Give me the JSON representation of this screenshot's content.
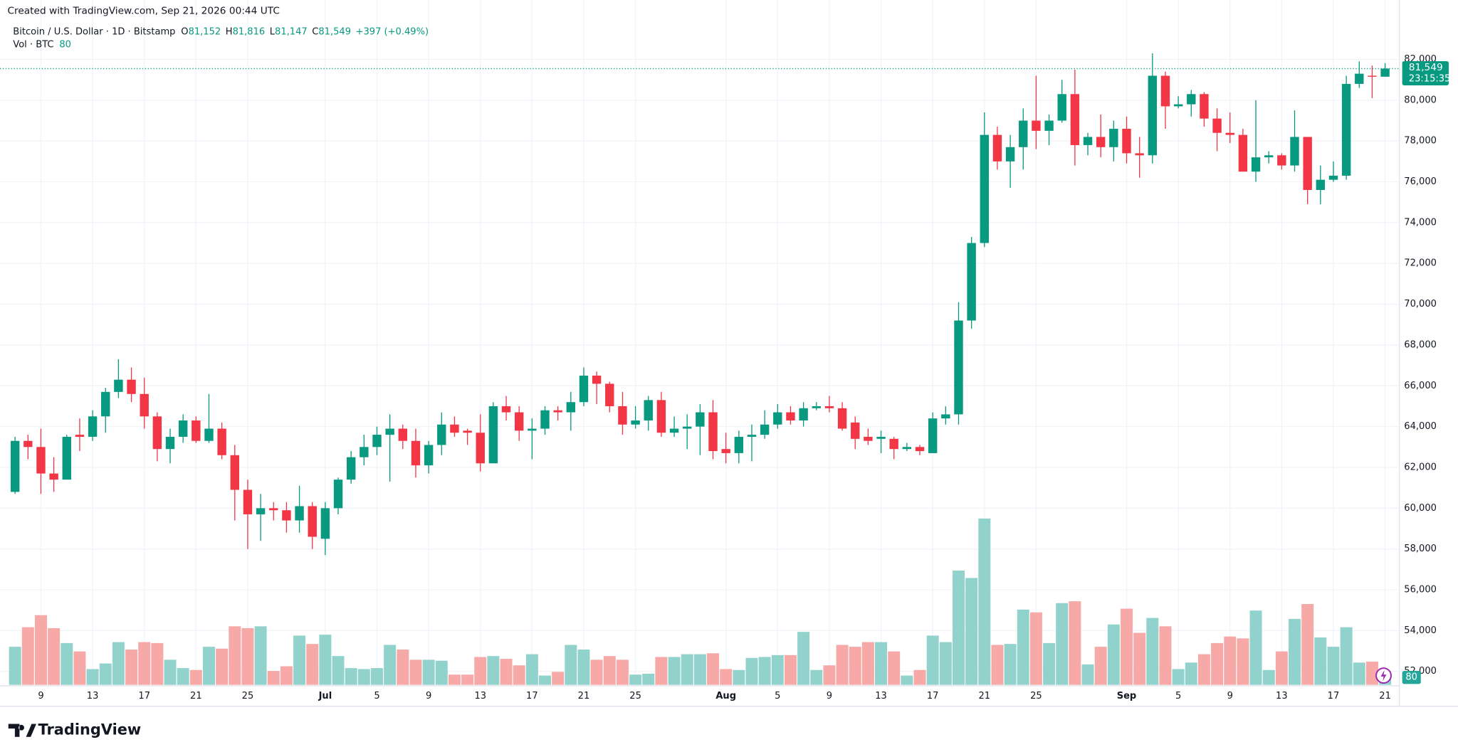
{
  "watermark": "Created with TradingView.com, Sep 21, 2026 00:44 UTC",
  "brand": "TradingView",
  "chart_data": {
    "type": "candlestick",
    "symbol": "Bitcoin / U.S. Dollar · 1D · Bitstamp",
    "ohlc": [
      {
        "label": "O",
        "value": "81,152"
      },
      {
        "label": "H",
        "value": "81,816"
      },
      {
        "label": "L",
        "value": "81,147"
      },
      {
        "label": "C",
        "value": "81,549"
      }
    ],
    "change": "+397 (+0.49%)",
    "volume_label": "Vol · BTC",
    "up_color": "#089981",
    "down_color": "#f23645",
    "volume_up_color": "#92d2cc",
    "volume_down_color": "#f7a9a7",
    "grid": true,
    "x": [
      "2026-06-07",
      "2026-06-08",
      "2026-06-09",
      "2026-06-10",
      "2026-06-11",
      "2026-06-12",
      "2026-06-13",
      "2026-06-14",
      "2026-06-15",
      "2026-06-16",
      "2026-06-17",
      "2026-06-18",
      "2026-06-19",
      "2026-06-20",
      "2026-06-21",
      "2026-06-22",
      "2026-06-23",
      "2026-06-24",
      "2026-06-25",
      "2026-06-26",
      "2026-06-27",
      "2026-06-28",
      "2026-06-29",
      "2026-06-30",
      "2026-07-01",
      "2026-07-02",
      "2026-07-03",
      "2026-07-04",
      "2026-07-05",
      "2026-07-06",
      "2026-07-07",
      "2026-07-08",
      "2026-07-09",
      "2026-07-10",
      "2026-07-11",
      "2026-07-12",
      "2026-07-13",
      "2026-07-14",
      "2026-07-15",
      "2026-07-16",
      "2026-07-17",
      "2026-07-18",
      "2026-07-19",
      "2026-07-20",
      "2026-07-21",
      "2026-07-22",
      "2026-07-23",
      "2026-07-24",
      "2026-07-25",
      "2026-07-26",
      "2026-07-27",
      "2026-07-28",
      "2026-07-29",
      "2026-07-30",
      "2026-07-31",
      "2026-08-01",
      "2026-08-02",
      "2026-08-03",
      "2026-08-04",
      "2026-08-05",
      "2026-08-06",
      "2026-08-07",
      "2026-08-08",
      "2026-08-09",
      "2026-08-10",
      "2026-08-11",
      "2026-08-12",
      "2026-08-13",
      "2026-08-14",
      "2026-08-15",
      "2026-08-16",
      "2026-08-17",
      "2026-08-18",
      "2026-08-19",
      "2026-08-20",
      "2026-08-21",
      "2026-08-22",
      "2026-08-23",
      "2026-08-24",
      "2026-08-25",
      "2026-08-26",
      "2026-08-27",
      "2026-08-28",
      "2026-08-29",
      "2026-08-30",
      "2026-08-31",
      "2026-09-01",
      "2026-09-02",
      "2026-09-03",
      "2026-09-04",
      "2026-09-05",
      "2026-09-06",
      "2026-09-07",
      "2026-09-08",
      "2026-09-09",
      "2026-09-10",
      "2026-09-11",
      "2026-09-12",
      "2026-09-13",
      "2026-09-14",
      "2026-09-15",
      "2026-09-16",
      "2026-09-17",
      "2026-09-18",
      "2026-09-19",
      "2026-09-20",
      "2026-09-21"
    ],
    "open": [
      60800,
      63300,
      63000,
      61700,
      61400,
      63600,
      63500,
      64500,
      65700,
      66300,
      65600,
      64500,
      62900,
      63500,
      64300,
      63300,
      63900,
      62600,
      60900,
      59700,
      60000,
      59900,
      59400,
      60100,
      58500,
      60000,
      61400,
      62500,
      63000,
      63600,
      63900,
      63300,
      62100,
      63100,
      64100,
      63800,
      63700,
      62200,
      65000,
      64700,
      63800,
      63900,
      64800,
      64700,
      65200,
      66500,
      66100,
      65000,
      64100,
      64300,
      65300,
      63700,
      63900,
      64000,
      64700,
      62900,
      62700,
      63500,
      63600,
      64100,
      64700,
      64300,
      64900,
      65000,
      64900,
      64200,
      63500,
      63400,
      63400,
      62900,
      63000,
      62700,
      64400,
      64600,
      69200,
      73000,
      78300,
      77000,
      77700,
      79000,
      78500,
      79000,
      80300,
      77800,
      78200,
      77700,
      78600,
      77400,
      77300,
      81200,
      79700,
      79800,
      80300,
      79100,
      78400,
      78300,
      76500,
      77200,
      77300,
      76800,
      78200,
      75600,
      76100,
      76300,
      80800,
      81200,
      81152
    ],
    "high": [
      63500,
      63600,
      63900,
      62500,
      63600,
      64400,
      64800,
      65900,
      67300,
      66900,
      66400,
      64700,
      63900,
      64600,
      64500,
      65600,
      64200,
      63100,
      61400,
      60700,
      60300,
      60300,
      61100,
      60300,
      60300,
      61500,
      62800,
      63600,
      64000,
      64600,
      64100,
      63900,
      63300,
      64700,
      64500,
      63900,
      64600,
      65200,
      65500,
      65000,
      64400,
      65000,
      65000,
      65700,
      66900,
      66700,
      66200,
      65700,
      65000,
      65500,
      65700,
      64500,
      64600,
      65100,
      65300,
      63700,
      63800,
      64100,
      64800,
      65100,
      65000,
      65200,
      65200,
      65500,
      65200,
      64500,
      63900,
      63800,
      63500,
      63200,
      63100,
      64700,
      65000,
      70100,
      73300,
      79400,
      78700,
      78300,
      79600,
      81200,
      79300,
      81000,
      81500,
      78400,
      79300,
      79000,
      79200,
      78200,
      82300,
      81400,
      80200,
      80500,
      80400,
      79600,
      79400,
      78600,
      80000,
      77500,
      77400,
      79500,
      78200,
      76800,
      77000,
      81200,
      81900,
      81700,
      81816
    ],
    "low": [
      60700,
      62400,
      60700,
      60800,
      61400,
      62800,
      63300,
      63700,
      65400,
      65200,
      63900,
      62300,
      62200,
      63200,
      63200,
      63200,
      62400,
      59400,
      58000,
      58400,
      59400,
      58800,
      58800,
      58000,
      57700,
      59700,
      61200,
      62100,
      62600,
      61300,
      62900,
      61500,
      61700,
      62600,
      63500,
      63100,
      61800,
      62200,
      64300,
      63300,
      62400,
      63600,
      64300,
      63800,
      65000,
      65100,
      64700,
      63600,
      63900,
      63800,
      63500,
      63500,
      62900,
      62600,
      62400,
      62200,
      62200,
      62300,
      63400,
      63900,
      64100,
      64000,
      64800,
      64700,
      63800,
      62900,
      63100,
      62700,
      62400,
      62800,
      62600,
      62700,
      64100,
      64100,
      68800,
      72800,
      76600,
      75700,
      76600,
      77600,
      77800,
      78900,
      76800,
      77300,
      77200,
      77000,
      76900,
      76200,
      76900,
      78600,
      79600,
      79200,
      78700,
      77500,
      77900,
      76500,
      76000,
      76900,
      76600,
      76500,
      74900,
      74900,
      76000,
      76100,
      80600,
      80100,
      81147
    ],
    "close": [
      63300,
      63000,
      61700,
      61400,
      63500,
      63500,
      64500,
      65700,
      66300,
      65600,
      64500,
      62900,
      63500,
      64300,
      63300,
      63900,
      62600,
      60900,
      59700,
      60000,
      59900,
      59400,
      60100,
      58600,
      60000,
      61400,
      62500,
      63000,
      63600,
      63900,
      63300,
      62100,
      63100,
      64100,
      63700,
      63700,
      62200,
      65000,
      64700,
      63800,
      63900,
      64800,
      64700,
      65200,
      66500,
      66100,
      65000,
      64100,
      64300,
      65300,
      63700,
      63900,
      64000,
      64700,
      62800,
      62700,
      63500,
      63600,
      64100,
      64700,
      64300,
      64900,
      65000,
      64900,
      63900,
      63400,
      63300,
      63500,
      62900,
      63000,
      62800,
      64400,
      64600,
      69200,
      73000,
      78300,
      77000,
      77700,
      79000,
      78500,
      79000,
      80300,
      77800,
      78200,
      77700,
      78600,
      77400,
      77300,
      81200,
      79700,
      79800,
      80300,
      79100,
      78400,
      78300,
      76500,
      77200,
      77300,
      76800,
      78200,
      75600,
      76100,
      76300,
      80800,
      81300,
      81150,
      81549
    ],
    "volume": [
      369,
      558,
      675,
      549,
      405,
      324,
      153,
      207,
      414,
      342,
      414,
      405,
      243,
      162,
      144,
      369,
      351,
      567,
      549,
      567,
      135,
      180,
      477,
      396,
      486,
      279,
      162,
      153,
      162,
      387,
      342,
      243,
      243,
      234,
      99,
      99,
      270,
      279,
      252,
      189,
      297,
      90,
      126,
      387,
      342,
      243,
      279,
      243,
      99,
      108,
      270,
      270,
      297,
      297,
      306,
      153,
      144,
      261,
      270,
      288,
      288,
      513,
      144,
      189,
      387,
      369,
      414,
      414,
      324,
      90,
      144,
      477,
      414,
      1107,
      1035,
      1611,
      387,
      396,
      729,
      702,
      405,
      792,
      810,
      198,
      369,
      585,
      738,
      504,
      648,
      567,
      153,
      216,
      297,
      405,
      468,
      450,
      720,
      144,
      324,
      639,
      783,
      459,
      369,
      558,
      216,
      225,
      80
    ],
    "ylim": [
      51340,
      83910
    ],
    "yticks": [
      {
        "value": 52000,
        "label": "52,000"
      },
      {
        "value": 54000,
        "label": "54,000"
      },
      {
        "value": 56000,
        "label": "56,000"
      },
      {
        "value": 58000,
        "label": "58,000"
      },
      {
        "value": 60000,
        "label": "60,000"
      },
      {
        "value": 62000,
        "label": "62,000"
      },
      {
        "value": 64000,
        "label": "64,000"
      },
      {
        "value": 66000,
        "label": "66,000"
      },
      {
        "value": 68000,
        "label": "68,000"
      },
      {
        "value": 70000,
        "label": "70,000"
      },
      {
        "value": 72000,
        "label": "72,000"
      },
      {
        "value": 74000,
        "label": "74,000"
      },
      {
        "value": 76000,
        "label": "76,000"
      },
      {
        "value": 78000,
        "label": "78,000"
      },
      {
        "value": 80000,
        "label": "80,000"
      },
      {
        "value": 82000,
        "label": "82,000"
      }
    ],
    "xticks": [
      {
        "value": "2026-06-09",
        "label": "9"
      },
      {
        "value": "2026-06-13",
        "label": "13"
      },
      {
        "value": "2026-06-17",
        "label": "17"
      },
      {
        "value": "2026-06-21",
        "label": "21"
      },
      {
        "value": "2026-06-25",
        "label": "25"
      },
      {
        "value": "2026-07-01",
        "label": "Jul"
      },
      {
        "value": "2026-07-05",
        "label": "5"
      },
      {
        "value": "2026-07-09",
        "label": "9"
      },
      {
        "value": "2026-07-13",
        "label": "13"
      },
      {
        "value": "2026-07-17",
        "label": "17"
      },
      {
        "value": "2026-07-21",
        "label": "21"
      },
      {
        "value": "2026-07-25",
        "label": "25"
      },
      {
        "value": "2026-08-01",
        "label": "Aug"
      },
      {
        "value": "2026-08-05",
        "label": "5"
      },
      {
        "value": "2026-08-09",
        "label": "9"
      },
      {
        "value": "2026-08-13",
        "label": "13"
      },
      {
        "value": "2026-08-17",
        "label": "17"
      },
      {
        "value": "2026-08-21",
        "label": "21"
      },
      {
        "value": "2026-08-25",
        "label": "25"
      },
      {
        "value": "2026-09-01",
        "label": "Sep"
      },
      {
        "value": "2026-09-05",
        "label": "5"
      },
      {
        "value": "2026-09-09",
        "label": "9"
      },
      {
        "value": "2026-09-13",
        "label": "13"
      },
      {
        "value": "2026-09-17",
        "label": "17"
      },
      {
        "value": "2026-09-21",
        "label": "21"
      }
    ],
    "last_price": {
      "value": 81549,
      "label": "81,549"
    },
    "countdown": "23:15:35"
  }
}
